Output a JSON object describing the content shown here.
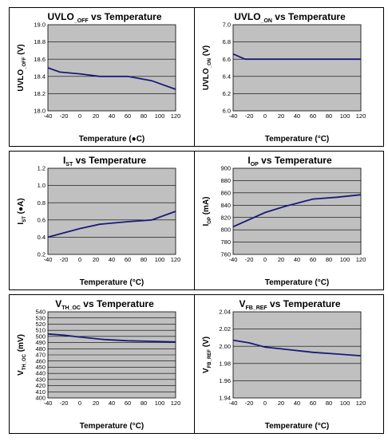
{
  "chart_data": [
    {
      "type": "line",
      "title": "UVLO",
      "title_sub": "_OFF",
      "title_rest": " vs Temperature",
      "ylabel": "UVLO",
      "ylabel_sub": "_OFF",
      "ylabel_rest": " (V)",
      "xlabel": "Temperature (●C)",
      "xlim": [
        -40,
        120
      ],
      "ylim": [
        18.0,
        19.0
      ],
      "xticks": [
        "-40",
        "-20",
        "0",
        "20",
        "40",
        "60",
        "80",
        "100",
        "120"
      ],
      "yticks": [
        "18.0",
        "18.2",
        "18.4",
        "18.6",
        "18.8",
        "19.0"
      ],
      "x": [
        -40,
        -25,
        0,
        25,
        60,
        90,
        120
      ],
      "y": [
        18.5,
        18.45,
        18.43,
        18.4,
        18.4,
        18.35,
        18.25
      ],
      "grid": true
    },
    {
      "type": "line",
      "title": "UVLO",
      "title_sub": "_ON",
      "title_rest": " vs Temperature",
      "ylabel": "UVLO",
      "ylabel_sub": "_ON",
      "ylabel_rest": " (V)",
      "xlabel": "Temperature (°C)",
      "xlim": [
        -40,
        120
      ],
      "ylim": [
        6.0,
        7.0
      ],
      "xticks": [
        "-40",
        "-20",
        "0",
        "20",
        "40",
        "60",
        "80",
        "100",
        "120"
      ],
      "yticks": [
        "6.0",
        "6.2",
        "6.4",
        "6.6",
        "6.8",
        "7.0"
      ],
      "x": [
        -40,
        -25,
        0,
        25,
        60,
        90,
        120
      ],
      "y": [
        6.66,
        6.6,
        6.6,
        6.6,
        6.6,
        6.6,
        6.6
      ],
      "grid": true
    },
    {
      "type": "line",
      "title": "I",
      "title_sub": "ST",
      "title_rest": "  vs Temperature",
      "ylabel": "I",
      "ylabel_sub": "ST",
      "ylabel_rest": "  (●A)",
      "xlabel": "Temperature (°C)",
      "xlim": [
        -40,
        120
      ],
      "ylim": [
        0.2,
        1.2
      ],
      "xticks": [
        "-40",
        "-20",
        "0",
        "20",
        "40",
        "60",
        "80",
        "100",
        "120"
      ],
      "yticks": [
        "0.2",
        "0.4",
        "0.6",
        "0.8",
        "1.0",
        "1.2"
      ],
      "x": [
        -40,
        0,
        25,
        60,
        90,
        120
      ],
      "y": [
        0.4,
        0.5,
        0.55,
        0.58,
        0.6,
        0.7
      ],
      "grid": true
    },
    {
      "type": "line",
      "title": "I",
      "title_sub": "OP",
      "title_rest": "  vs Temperature",
      "ylabel": "I",
      "ylabel_sub": "OP",
      "ylabel_rest": " (mA)",
      "xlabel": "Temperature (°C)",
      "xlim": [
        -40,
        120
      ],
      "ylim": [
        760,
        900
      ],
      "xticks": [
        "-40",
        "-20",
        "0",
        "20",
        "40",
        "60",
        "80",
        "100",
        "120"
      ],
      "yticks": [
        "760",
        "780",
        "800",
        "820",
        "840",
        "860",
        "880",
        "900"
      ],
      "x": [
        -40,
        0,
        25,
        60,
        90,
        120
      ],
      "y": [
        805,
        828,
        838,
        850,
        853,
        857
      ],
      "grid": true
    },
    {
      "type": "line",
      "title": "V",
      "title_sub": "TH_OC",
      "title_rest": "  vs Temperature",
      "ylabel": "V",
      "ylabel_sub": "TH_OC",
      "ylabel_rest": "  (mV)",
      "xlabel": "Temperature (°C)",
      "xlim": [
        -40,
        120
      ],
      "ylim": [
        400,
        540
      ],
      "xticks": [
        "-40",
        "-20",
        "0",
        "20",
        "40",
        "60",
        "80",
        "100",
        "120"
      ],
      "yticks": [
        "400",
        "410",
        "420",
        "430",
        "440",
        "450",
        "460",
        "470",
        "480",
        "490",
        "500",
        "510",
        "520",
        "530",
        "540"
      ],
      "x": [
        -40,
        -20,
        0,
        30,
        60,
        90,
        120
      ],
      "y": [
        504,
        502,
        499,
        495,
        493,
        492,
        491
      ],
      "grid": true
    },
    {
      "type": "line",
      "title": "V",
      "title_sub": "FB_REF",
      "title_rest": "  vs Temperature",
      "ylabel": "V",
      "ylabel_sub": "FB_REF",
      "ylabel_rest": " (V)",
      "xlabel": "Temperature (°C)",
      "xlim": [
        -40,
        120
      ],
      "ylim": [
        1.94,
        2.04
      ],
      "xticks": [
        "-40",
        "-20",
        "0",
        "20",
        "40",
        "60",
        "80",
        "100",
        "120"
      ],
      "yticks": [
        "1.94",
        "1.96",
        "1.98",
        "2.00",
        "2.02",
        "2.04"
      ],
      "x": [
        -40,
        -20,
        0,
        30,
        60,
        90,
        120
      ],
      "y": [
        2.007,
        2.004,
        1.999,
        1.996,
        1.993,
        1.991,
        1.989
      ],
      "grid": true
    }
  ]
}
